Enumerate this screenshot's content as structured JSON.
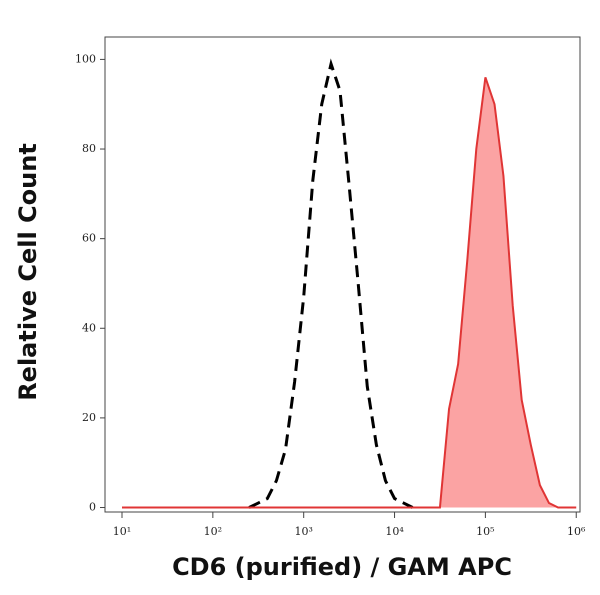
{
  "chart_data": {
    "type": "histogram-overlay",
    "x_label": "CD6 (purified) / GAM APC",
    "y_label": "Relative Cell Count",
    "xscale": "log",
    "xlim": [
      6.5,
      1100000
    ],
    "ylim": [
      -1,
      105
    ],
    "xticks": [
      {
        "value": 10,
        "label": "10¹"
      },
      {
        "value": 100,
        "label": "10²"
      },
      {
        "value": 1000,
        "label": "10³"
      },
      {
        "value": 10000,
        "label": "10⁴"
      },
      {
        "value": 100000,
        "label": "10⁵"
      },
      {
        "value": 1000000,
        "label": "10⁶"
      }
    ],
    "yticks": [
      0,
      20,
      40,
      60,
      80,
      100
    ],
    "x": [
      10,
      12.6,
      15.8,
      20,
      25.1,
      31.6,
      39.8,
      50.1,
      63.1,
      79.4,
      100,
      126,
      158,
      200,
      251,
      316,
      398,
      501,
      631,
      794,
      1000,
      1260,
      1580,
      2000,
      2510,
      3160,
      3980,
      5010,
      6310,
      7940,
      10000,
      12600,
      15800,
      20000,
      25100,
      31600,
      39800,
      50100,
      63100,
      79400,
      100000,
      126000,
      158000,
      200000,
      251000,
      316000,
      398000,
      501000,
      631000,
      794000,
      1000000
    ],
    "series": [
      {
        "color": "#000000",
        "style": "dashed",
        "fill": false,
        "values": [
          null,
          null,
          null,
          null,
          null,
          null,
          null,
          null,
          null,
          null,
          null,
          null,
          null,
          null,
          0,
          1,
          2,
          6,
          13,
          28,
          47,
          73,
          90,
          99,
          93,
          72,
          50,
          27,
          14,
          6,
          2,
          1,
          0,
          null,
          null,
          null,
          null,
          null,
          null,
          null,
          null,
          null,
          null,
          null,
          null,
          null,
          null,
          null,
          null,
          null,
          null
        ]
      },
      {
        "color": "#e03535",
        "fill_color": "#fba3a3",
        "style": "solid",
        "fill": true,
        "values": [
          0,
          0,
          0,
          0,
          0,
          0,
          0,
          0,
          0,
          0,
          0,
          0,
          0,
          0,
          0,
          0,
          0,
          0,
          0,
          0,
          0,
          0,
          0,
          0,
          0,
          0,
          0,
          0,
          0,
          0,
          0,
          0,
          0,
          0,
          0,
          0,
          22,
          32,
          55,
          80,
          96,
          90,
          74,
          45,
          24,
          14,
          5,
          1,
          0,
          0,
          0
        ]
      }
    ]
  }
}
